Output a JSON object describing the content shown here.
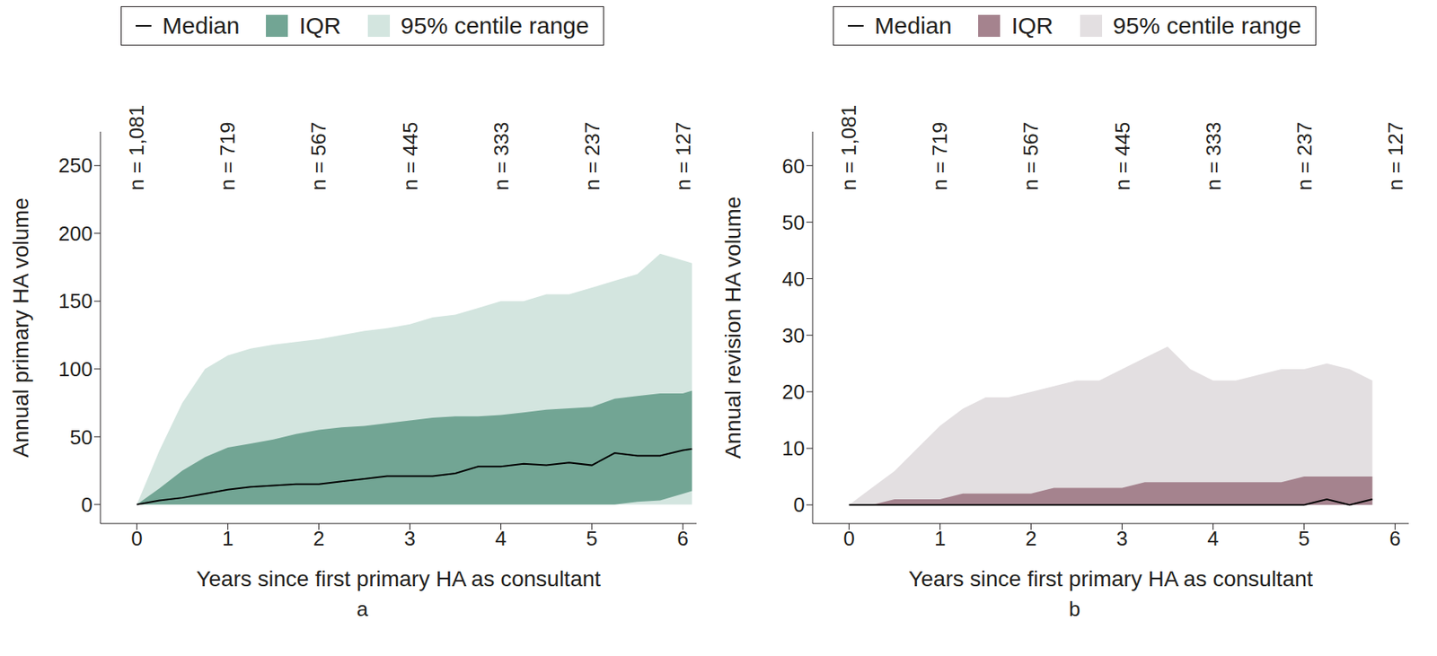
{
  "chart_data": [
    {
      "type": "area",
      "title": "a",
      "x_label": "Years since first primary HA as consultant",
      "y_label": "Annual primary HA volume",
      "x": [
        0,
        0.25,
        0.5,
        0.75,
        1,
        1.25,
        1.5,
        1.75,
        2,
        2.25,
        2.5,
        2.75,
        3,
        3.25,
        3.5,
        3.75,
        4,
        4.25,
        4.5,
        4.75,
        5,
        5.25,
        5.5,
        5.75,
        6,
        6.1
      ],
      "series": [
        {
          "name": "Median",
          "type": "line",
          "color": "#000000",
          "values": [
            0,
            3,
            5,
            8,
            11,
            13,
            14,
            15,
            15,
            17,
            19,
            21,
            21,
            21,
            23,
            28,
            28,
            30,
            29,
            31,
            29,
            38,
            36,
            36,
            40,
            41
          ]
        },
        {
          "name": "IQR",
          "type": "band",
          "color": "#72a594",
          "lower": [
            0,
            0,
            0,
            0,
            0,
            0,
            0,
            0,
            0,
            0,
            0,
            0,
            0,
            0,
            0,
            0,
            0,
            0,
            0,
            0,
            0,
            0,
            2,
            3,
            8,
            10
          ],
          "upper": [
            0,
            12,
            25,
            35,
            42,
            45,
            48,
            52,
            55,
            57,
            58,
            60,
            62,
            64,
            65,
            65,
            66,
            68,
            70,
            71,
            72,
            78,
            80,
            82,
            82,
            84
          ]
        },
        {
          "name": "95% centile range",
          "type": "band",
          "color": "#d3e5df",
          "lower": [
            0,
            0,
            0,
            0,
            0,
            0,
            0,
            0,
            0,
            0,
            0,
            0,
            0,
            0,
            0,
            0,
            0,
            0,
            0,
            0,
            0,
            0,
            0,
            0,
            0,
            0
          ],
          "upper": [
            0,
            40,
            75,
            100,
            110,
            115,
            118,
            120,
            122,
            125,
            128,
            130,
            133,
            138,
            140,
            145,
            150,
            150,
            155,
            155,
            160,
            165,
            170,
            185,
            180,
            178
          ]
        }
      ],
      "xlim": [
        -0.4,
        6.15
      ],
      "xticks": [
        0,
        1,
        2,
        3,
        4,
        5,
        6
      ],
      "ylim": [
        -14,
        275
      ],
      "yticks": [
        0,
        50,
        100,
        150,
        200,
        250
      ],
      "annotations": [
        {
          "x": 0,
          "text": "n = 1,081"
        },
        {
          "x": 1,
          "text": "n = 719"
        },
        {
          "x": 2,
          "text": "n = 567"
        },
        {
          "x": 3,
          "text": "n = 445"
        },
        {
          "x": 4,
          "text": "n = 333"
        },
        {
          "x": 5,
          "text": "n = 237"
        },
        {
          "x": 6,
          "text": "n = 127"
        }
      ],
      "grid": false,
      "legend": "top"
    },
    {
      "type": "area",
      "title": "b",
      "x_label": "Years since first primary HA as consultant",
      "y_label": "Annual revision HA volume",
      "x": [
        0,
        0.25,
        0.5,
        0.75,
        1,
        1.25,
        1.5,
        1.75,
        2,
        2.25,
        2.5,
        2.75,
        3,
        3.25,
        3.5,
        3.75,
        4,
        4.25,
        4.5,
        4.75,
        5,
        5.25,
        5.5,
        5.75
      ],
      "series": [
        {
          "name": "Median",
          "type": "line",
          "color": "#000000",
          "values": [
            0,
            0,
            0,
            0,
            0,
            0,
            0,
            0,
            0,
            0,
            0,
            0,
            0,
            0,
            0,
            0,
            0,
            0,
            0,
            0,
            0,
            1,
            0,
            1
          ]
        },
        {
          "name": "IQR",
          "type": "band",
          "color": "#a5838e",
          "lower": [
            0,
            0,
            0,
            0,
            0,
            0,
            0,
            0,
            0,
            0,
            0,
            0,
            0,
            0,
            0,
            0,
            0,
            0,
            0,
            0,
            0,
            0,
            0,
            0
          ],
          "upper": [
            0,
            0,
            1,
            1,
            1,
            2,
            2,
            2,
            2,
            3,
            3,
            3,
            3,
            4,
            4,
            4,
            4,
            4,
            4,
            4,
            5,
            5,
            5,
            5
          ]
        },
        {
          "name": "95% centile range",
          "type": "band",
          "color": "#e3dfe1",
          "lower": [
            0,
            0,
            0,
            0,
            0,
            0,
            0,
            0,
            0,
            0,
            0,
            0,
            0,
            0,
            0,
            0,
            0,
            0,
            0,
            0,
            0,
            0,
            0,
            0
          ],
          "upper": [
            0,
            3,
            6,
            10,
            14,
            17,
            19,
            19,
            20,
            21,
            22,
            22,
            24,
            26,
            28,
            24,
            22,
            22,
            23,
            24,
            24,
            25,
            24,
            22
          ]
        }
      ],
      "xlim": [
        -0.4,
        6.15
      ],
      "xticks": [
        0,
        1,
        2,
        3,
        4,
        5,
        6
      ],
      "ylim": [
        -3.3,
        66
      ],
      "yticks": [
        0,
        10,
        20,
        30,
        40,
        50,
        60
      ],
      "annotations": [
        {
          "x": 0,
          "text": "n = 1,081"
        },
        {
          "x": 1,
          "text": "n = 719"
        },
        {
          "x": 2,
          "text": "n = 567"
        },
        {
          "x": 3,
          "text": "n = 445"
        },
        {
          "x": 4,
          "text": "n = 333"
        },
        {
          "x": 5,
          "text": "n = 237"
        },
        {
          "x": 6,
          "text": "n = 127"
        }
      ],
      "grid": false,
      "legend": "top"
    }
  ]
}
